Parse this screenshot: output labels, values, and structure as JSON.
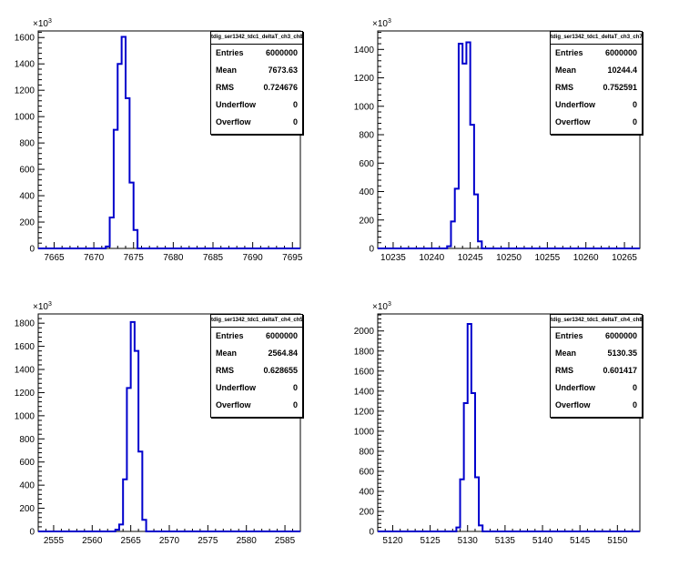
{
  "chart_data": [
    {
      "type": "histogram",
      "name": "tdig_ser1342_tdc1_deltaT_ch3_ch8",
      "y_exponent": "10",
      "y_exponent_power": "3",
      "xlim": [
        7663,
        7696
      ],
      "ylim": [
        0,
        1650
      ],
      "x_ticks": [
        7665,
        7670,
        7675,
        7680,
        7685,
        7690,
        7695
      ],
      "y_ticks": [
        0,
        200,
        400,
        600,
        800,
        1000,
        1200,
        1400,
        1600
      ],
      "bin_width": 0.5,
      "bins_x": [
        7671.5,
        7672.0,
        7672.5,
        7673.0,
        7673.5,
        7674.0,
        7674.5,
        7675.0
      ],
      "values": [
        15,
        235,
        900,
        1400,
        1605,
        1140,
        500,
        140
      ],
      "stats": {
        "title": "tdig_ser1342_tdc1_deltaT_ch3_ch8",
        "rows": [
          {
            "label": "Entries",
            "value": "6000000"
          },
          {
            "label": "Mean",
            "value": "7673.63"
          },
          {
            "label": "RMS",
            "value": "0.724676"
          },
          {
            "label": "Underflow",
            "value": "0"
          },
          {
            "label": "Overflow",
            "value": "0"
          }
        ]
      },
      "color": "#0000cc"
    },
    {
      "type": "histogram",
      "name": "tdig_ser1342_tdc1_deltaT_ch3_ch7",
      "y_exponent": "10",
      "y_exponent_power": "3",
      "xlim": [
        10233,
        10267
      ],
      "ylim": [
        0,
        1530
      ],
      "x_ticks": [
        10235,
        10240,
        10245,
        10250,
        10255,
        10260,
        10265
      ],
      "y_ticks": [
        0,
        200,
        400,
        600,
        800,
        1000,
        1200,
        1400
      ],
      "bin_width": 0.5,
      "bins_x": [
        10242.0,
        10242.5,
        10243.0,
        10243.5,
        10244.0,
        10244.5,
        10245.0,
        10245.5,
        10246.0
      ],
      "values": [
        15,
        190,
        420,
        1440,
        1300,
        1450,
        870,
        380,
        50
      ],
      "stats": {
        "title": "tdig_ser1342_tdc1_deltaT_ch3_ch7",
        "rows": [
          {
            "label": "Entries",
            "value": "6000000"
          },
          {
            "label": "Mean",
            "value": "10244.4"
          },
          {
            "label": "RMS",
            "value": "0.752591"
          },
          {
            "label": "Underflow",
            "value": "0"
          },
          {
            "label": "Overflow",
            "value": "0"
          }
        ]
      },
      "color": "#0000cc"
    },
    {
      "type": "histogram",
      "name": "tdig_ser1342_tdc1_deltaT_ch4_ch5",
      "y_exponent": "10",
      "y_exponent_power": "3",
      "xlim": [
        2553,
        2587
      ],
      "ylim": [
        0,
        1880
      ],
      "x_ticks": [
        2555,
        2560,
        2565,
        2570,
        2575,
        2580,
        2585
      ],
      "y_ticks": [
        0,
        200,
        400,
        600,
        800,
        1000,
        1200,
        1400,
        1600,
        1800
      ],
      "bin_width": 0.5,
      "bins_x": [
        2563.0,
        2563.5,
        2564.0,
        2564.5,
        2565.0,
        2565.5,
        2566.0,
        2566.5
      ],
      "values": [
        15,
        60,
        450,
        1240,
        1810,
        1560,
        690,
        100
      ],
      "stats": {
        "title": "tdig_ser1342_tdc1_deltaT_ch4_ch5",
        "rows": [
          {
            "label": "Entries",
            "value": "6000000"
          },
          {
            "label": "Mean",
            "value": "2564.84"
          },
          {
            "label": "RMS",
            "value": "0.628655"
          },
          {
            "label": "Underflow",
            "value": "0"
          },
          {
            "label": "Overflow",
            "value": "0"
          }
        ]
      },
      "color": "#0000cc"
    },
    {
      "type": "histogram",
      "name": "tdig_ser1342_tdc1_deltaT_ch4_ch8",
      "y_exponent": "10",
      "y_exponent_power": "3",
      "xlim": [
        5118,
        5153
      ],
      "ylim": [
        0,
        2170
      ],
      "x_ticks": [
        5120,
        5125,
        5130,
        5135,
        5140,
        5145,
        5150
      ],
      "y_ticks": [
        0,
        200,
        400,
        600,
        800,
        1000,
        1200,
        1400,
        1600,
        1800,
        2000
      ],
      "bin_width": 0.5,
      "bins_x": [
        5128.5,
        5129.0,
        5129.5,
        5130.0,
        5130.5,
        5131.0,
        5131.5
      ],
      "values": [
        40,
        520,
        1280,
        2070,
        1380,
        540,
        60
      ],
      "stats": {
        "title": "tdig_ser1342_tdc1_deltaT_ch4_ch8",
        "rows": [
          {
            "label": "Entries",
            "value": "6000000"
          },
          {
            "label": "Mean",
            "value": "5130.35"
          },
          {
            "label": "RMS",
            "value": "0.601417"
          },
          {
            "label": "Underflow",
            "value": "0"
          },
          {
            "label": "Overflow",
            "value": "0"
          }
        ]
      },
      "color": "#0000cc"
    }
  ]
}
